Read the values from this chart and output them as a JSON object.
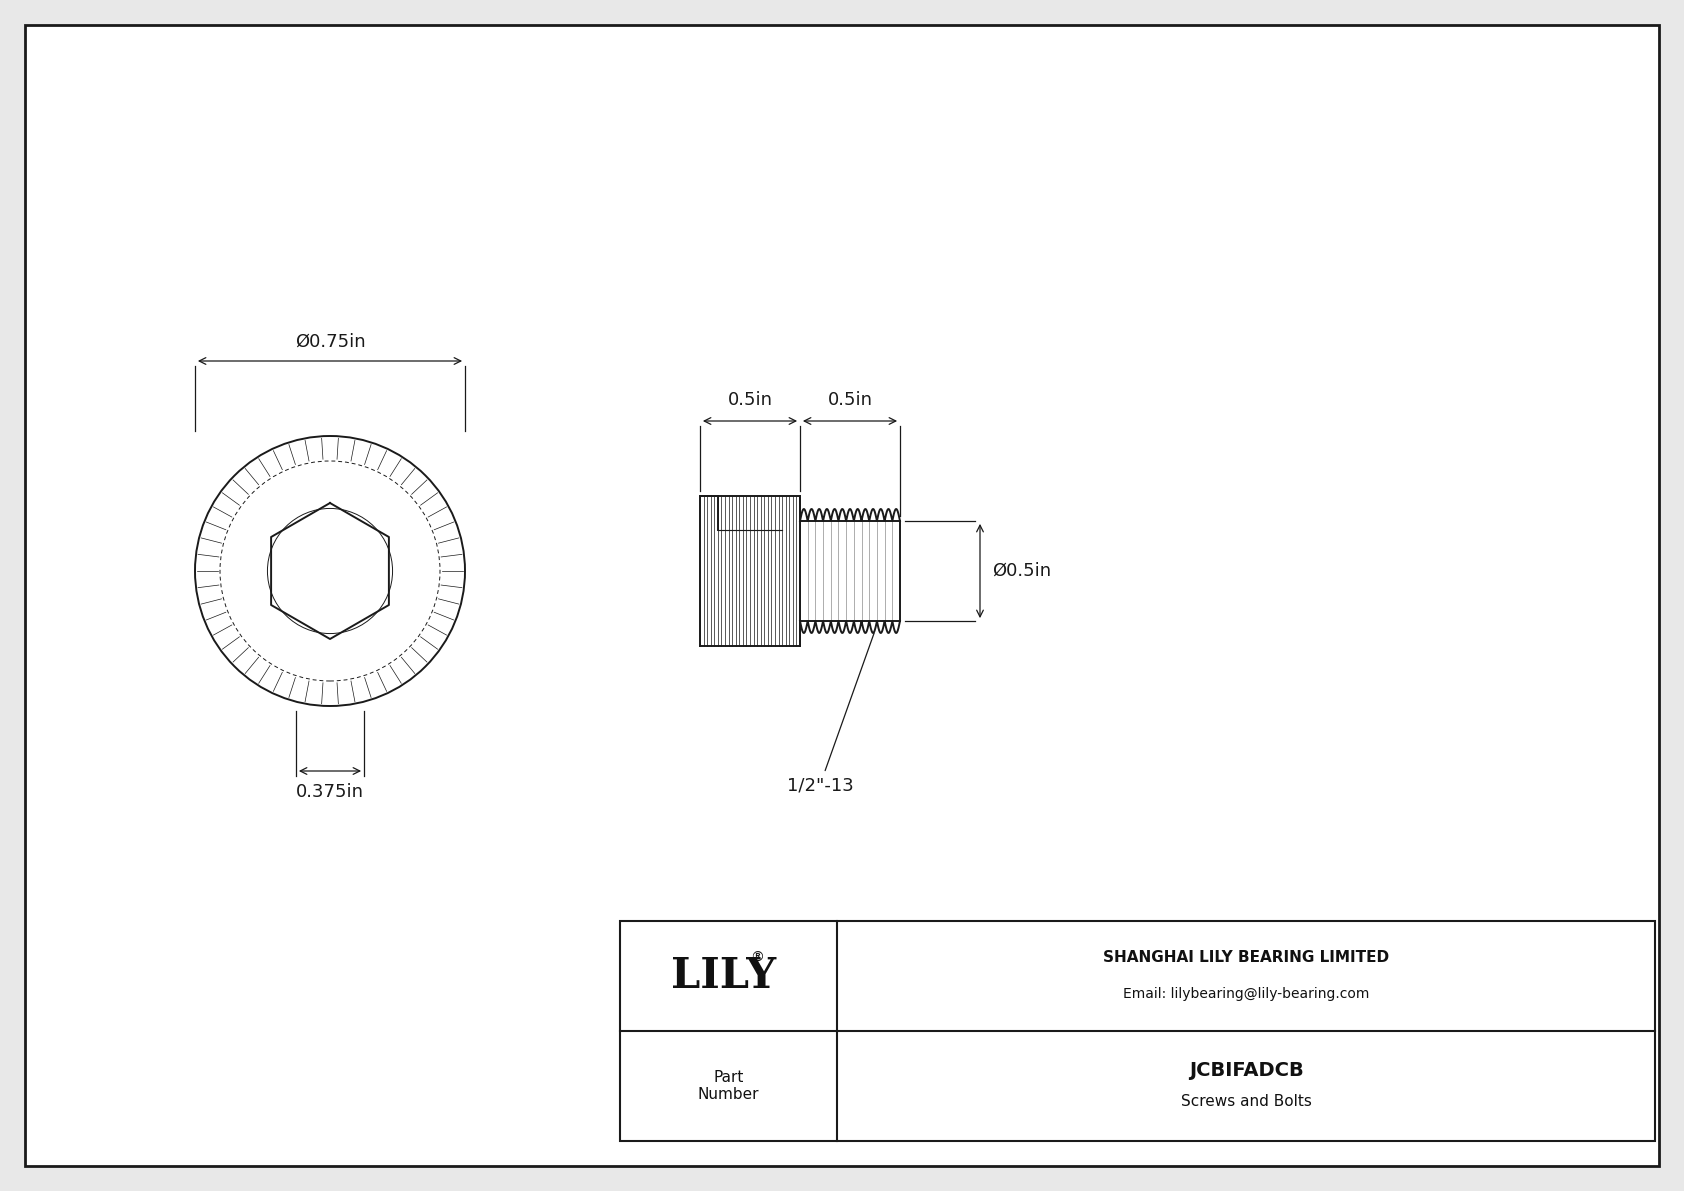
{
  "bg_color": "#e8e8e8",
  "drawing_bg": "#ffffff",
  "line_color": "#1a1a1a",
  "title": "JCBIFADCB",
  "subtitle": "Screws and Bolts",
  "company": "SHANGHAI LILY BEARING LIMITED",
  "email": "Email: lilybearing@lily-bearing.com",
  "part_label": "Part\nNumber",
  "dim_outer_diameter": "Ø0.75in",
  "dim_depth": "0.375in",
  "dim_head_length": "0.5in",
  "dim_thread_length": "0.5in",
  "dim_shank_diameter": "Ø0.5in",
  "dim_thread_label": "1/2\"-13",
  "lw_main": 1.4,
  "lw_dim": 0.9,
  "lw_thin": 0.7,
  "lw_knurl": 0.6
}
